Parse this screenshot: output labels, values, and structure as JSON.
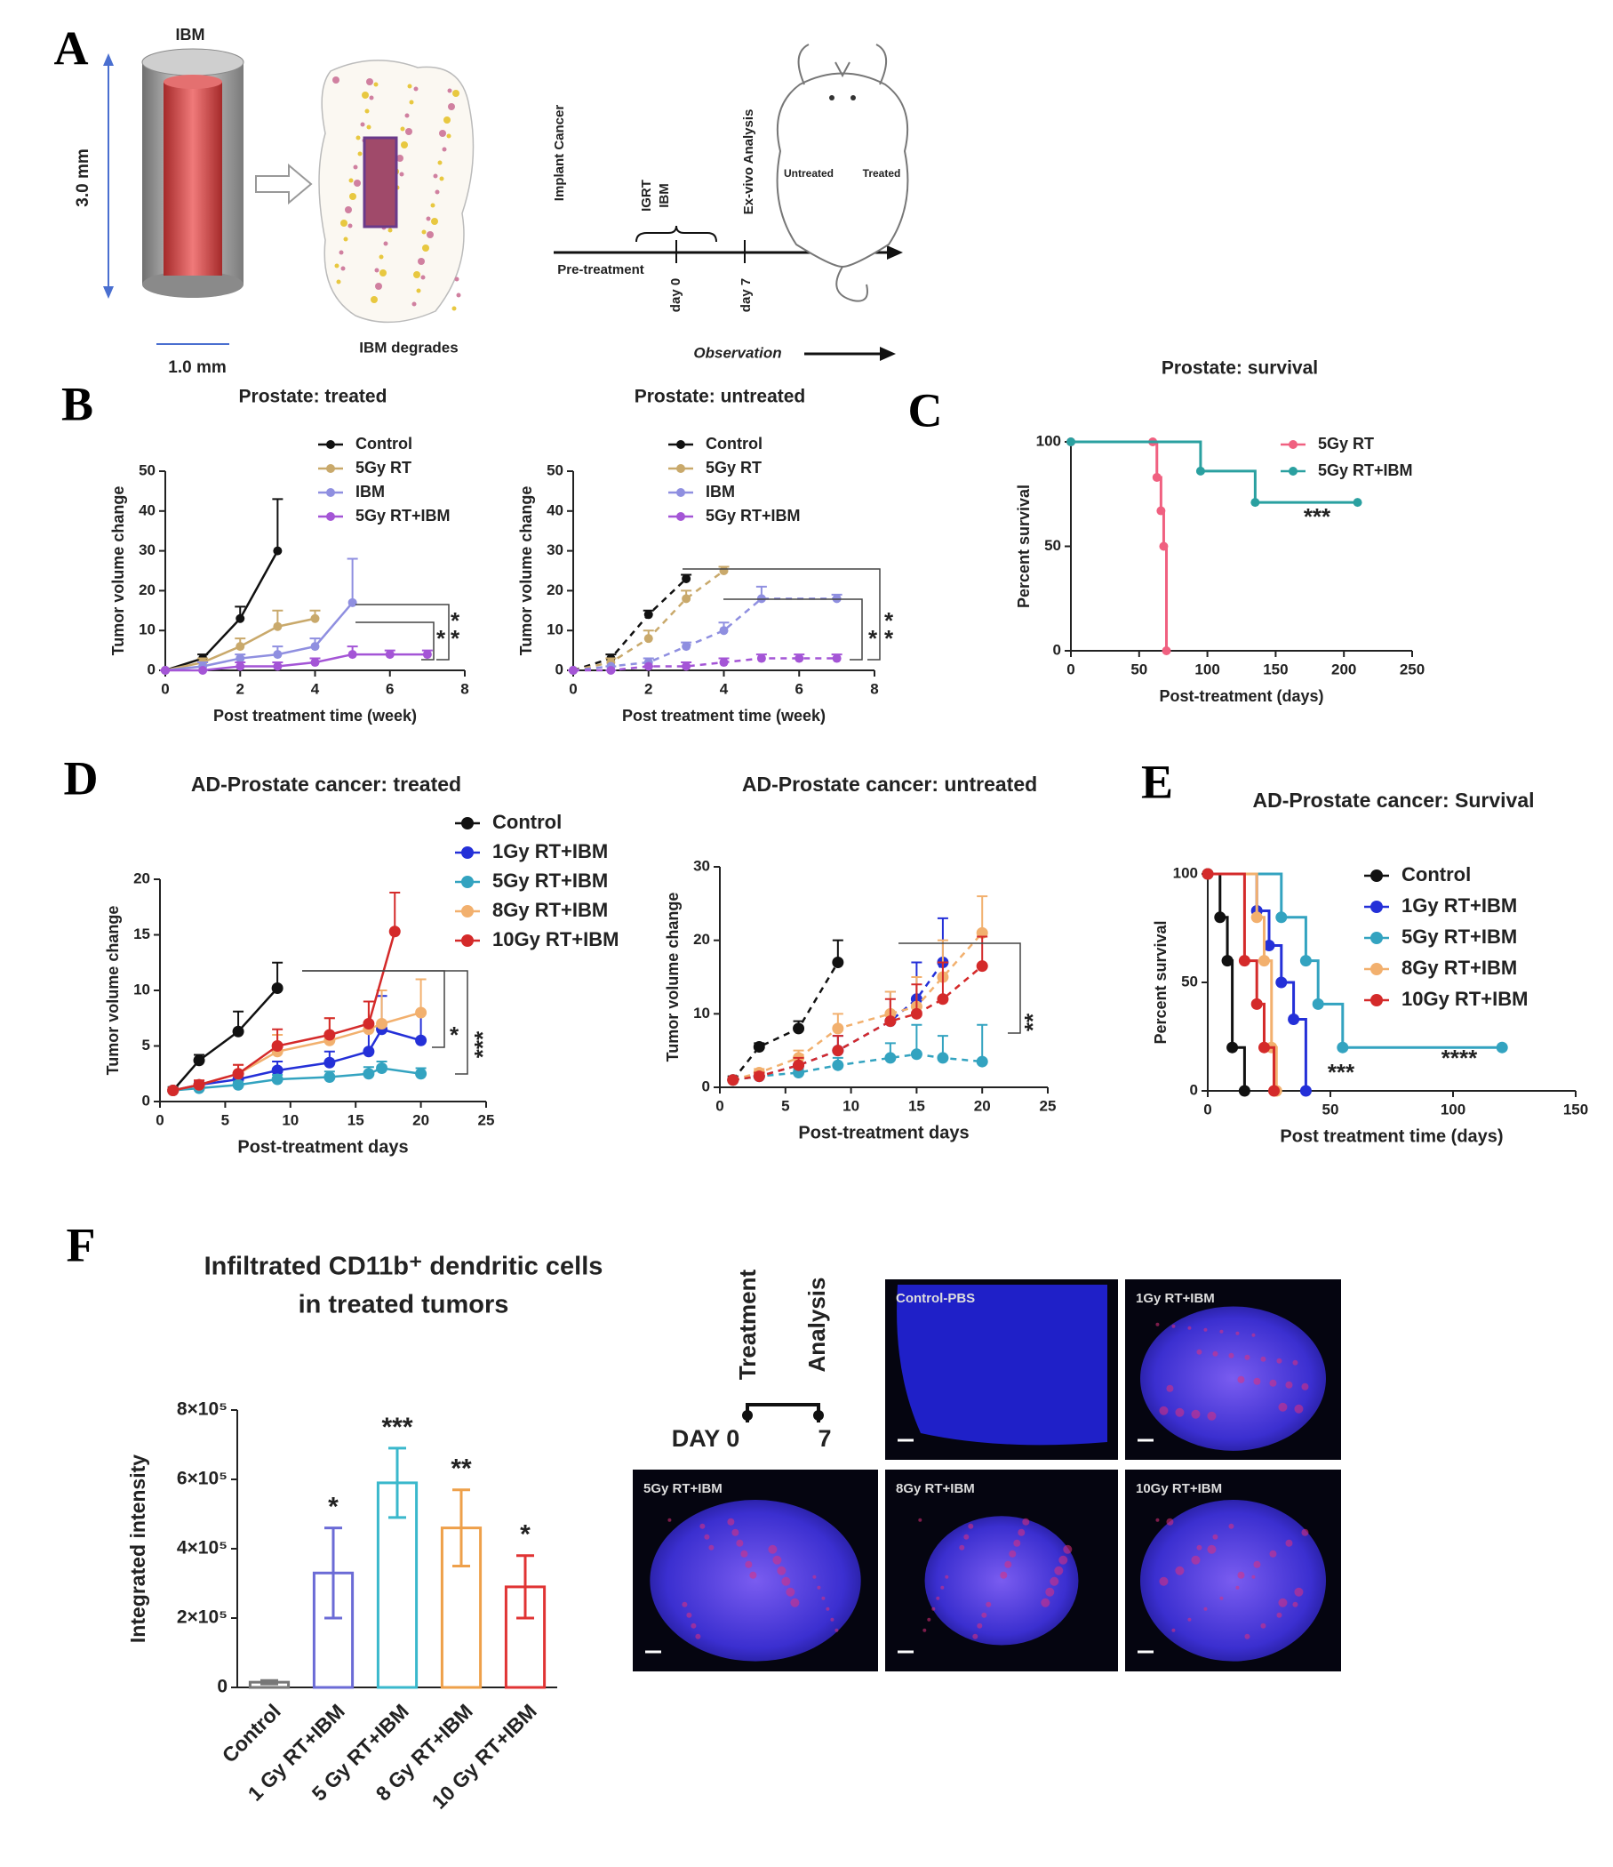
{
  "panel_labels": [
    "A",
    "B",
    "C",
    "D",
    "E",
    "F"
  ],
  "panel_a": {
    "ibm_label": "IBM",
    "height": "3.0 mm",
    "width": "1.0 mm",
    "degrades": "IBM degrades",
    "implant": "Implant Cancer",
    "igrt": "IGRT",
    "ibm": "IBM",
    "analysis": "Ex-vivo Analysis",
    "pretreatment": "Pre-treatment",
    "day0": "day 0",
    "day7": "day 7",
    "observation": "Observation",
    "untreated": "Untreated",
    "treated": "Treated"
  },
  "panel_f": {
    "timeline": {
      "treatment": "Treatment",
      "analysis": "Analysis",
      "day0": "DAY 0",
      "day7": "7"
    },
    "tiles": [
      "Control-PBS",
      "1Gy RT+IBM",
      "5Gy RT+IBM",
      "8Gy RT+IBM",
      "10Gy RT+IBM"
    ]
  },
  "chart_data": [
    {
      "type": "line",
      "title": "Prostate: treated",
      "xlabel": "Post treatment time (week)",
      "ylabel": "Tumor volume change",
      "xlim": [
        0,
        8
      ],
      "xticks": [
        0,
        2,
        4,
        6,
        8
      ],
      "ylim": [
        0,
        50
      ],
      "yticks": [
        0,
        10,
        20,
        30,
        40,
        50
      ],
      "linestyle": "solid",
      "annotations": [
        "*",
        "*",
        "*"
      ],
      "series": [
        {
          "name": "Control",
          "color": "#111111",
          "x": [
            0,
            1,
            2,
            3
          ],
          "values": [
            0,
            3,
            13,
            30
          ],
          "errors": [
            0,
            1,
            3,
            13
          ]
        },
        {
          "name": "5Gy RT",
          "color": "#c9a96b",
          "x": [
            0,
            1,
            2,
            3,
            4
          ],
          "values": [
            0,
            2,
            6,
            11,
            13
          ],
          "errors": [
            0,
            1,
            2,
            4,
            2
          ]
        },
        {
          "name": "IBM",
          "color": "#8f8fe0",
          "x": [
            0,
            1,
            2,
            3,
            4,
            5
          ],
          "values": [
            0,
            1,
            3,
            4,
            6,
            17
          ],
          "errors": [
            0,
            1,
            1,
            2,
            2,
            11
          ]
        },
        {
          "name": "5Gy RT+IBM",
          "color": "#a455d6",
          "x": [
            0,
            1,
            2,
            3,
            4,
            5,
            6,
            7
          ],
          "values": [
            0,
            0,
            1,
            1,
            2,
            4,
            4,
            4
          ],
          "errors": [
            0,
            0,
            1,
            1,
            1,
            2,
            1,
            1
          ]
        }
      ]
    },
    {
      "type": "line",
      "title": "Prostate: untreated",
      "xlabel": "Post treatment time (week)",
      "ylabel": "Tumor volume change",
      "xlim": [
        0,
        8
      ],
      "xticks": [
        0,
        2,
        4,
        6,
        8
      ],
      "ylim": [
        0,
        50
      ],
      "yticks": [
        0,
        10,
        20,
        30,
        40,
        50
      ],
      "linestyle": "dashed",
      "annotations": [
        "*",
        "*",
        "*"
      ],
      "series": [
        {
          "name": "Control",
          "color": "#111111",
          "x": [
            0,
            1,
            2,
            3
          ],
          "values": [
            0,
            3,
            14,
            23
          ],
          "errors": [
            0,
            1,
            1,
            1
          ]
        },
        {
          "name": "5Gy RT",
          "color": "#c9a96b",
          "x": [
            0,
            1,
            2,
            3,
            4
          ],
          "values": [
            0,
            2,
            8,
            18,
            25
          ],
          "errors": [
            0,
            1,
            2,
            2,
            1
          ]
        },
        {
          "name": "IBM",
          "color": "#8f8fe0",
          "x": [
            0,
            1,
            2,
            3,
            4,
            5,
            7
          ],
          "values": [
            0,
            1,
            2,
            6,
            10,
            18,
            18
          ],
          "errors": [
            0,
            0,
            1,
            1,
            2,
            3,
            1
          ]
        },
        {
          "name": "5Gy RT+IBM",
          "color": "#a455d6",
          "x": [
            0,
            1,
            2,
            3,
            4,
            5,
            6,
            7
          ],
          "values": [
            0,
            0,
            1,
            1,
            2,
            3,
            3,
            3
          ],
          "errors": [
            0,
            0,
            0,
            1,
            1,
            1,
            1,
            1
          ]
        }
      ]
    },
    {
      "type": "line",
      "drawstyle": "steps-post",
      "title": "Prostate: survival",
      "xlabel": "Post-treatment (days)",
      "ylabel": "Percent survival",
      "xlim": [
        0,
        250
      ],
      "xticks": [
        0,
        50,
        100,
        150,
        200,
        250
      ],
      "ylim": [
        0,
        100
      ],
      "yticks": [
        0,
        50,
        100
      ],
      "annotations": [
        "***"
      ],
      "series": [
        {
          "name": "5Gy RT",
          "color": "#f06080",
          "x": [
            0,
            60,
            63,
            66,
            68,
            70
          ],
          "values": [
            100,
            100,
            83,
            67,
            50,
            0
          ]
        },
        {
          "name": "5Gy RT+IBM",
          "color": "#2aa0a0",
          "x": [
            0,
            95,
            135,
            210
          ],
          "values": [
            100,
            86,
            71,
            71
          ]
        }
      ]
    },
    {
      "type": "line",
      "title": "AD-Prostate cancer: treated",
      "xlabel": "Post-treatment days",
      "ylabel": "Tumor volume change",
      "xlim": [
        0,
        25
      ],
      "xticks": [
        0,
        5,
        10,
        15,
        20,
        25
      ],
      "ylim": [
        0,
        20
      ],
      "yticks": [
        0,
        5,
        10,
        15,
        20
      ],
      "linestyle": "solid",
      "annotations": [
        "*",
        "***"
      ],
      "series": [
        {
          "name": "Control",
          "color": "#111111",
          "x": [
            1,
            3,
            6,
            9
          ],
          "values": [
            1,
            3.7,
            6.3,
            10.2
          ],
          "errors": [
            0.3,
            0.5,
            1.8,
            2.3
          ]
        },
        {
          "name": "1Gy RT+IBM",
          "color": "#2430d8",
          "x": [
            1,
            3,
            6,
            9,
            13,
            16,
            17,
            20
          ],
          "values": [
            1,
            1.5,
            2,
            2.8,
            3.5,
            4.5,
            6.5,
            5.5
          ],
          "errors": [
            0.2,
            0.3,
            0.5,
            0.8,
            1,
            2,
            3,
            2.5
          ]
        },
        {
          "name": "5Gy RT+IBM",
          "color": "#33a3c0",
          "x": [
            1,
            3,
            6,
            9,
            13,
            16,
            17,
            20
          ],
          "values": [
            1,
            1.2,
            1.5,
            2,
            2.2,
            2.5,
            3,
            2.5
          ],
          "errors": [
            0.1,
            0.2,
            0.3,
            0.4,
            0.5,
            0.6,
            0.6,
            0.5
          ]
        },
        {
          "name": "8Gy RT+IBM",
          "color": "#f2b06e",
          "x": [
            1,
            3,
            6,
            9,
            13,
            16,
            17,
            20
          ],
          "values": [
            1,
            1.5,
            2.5,
            4.5,
            5.5,
            6.5,
            7,
            8
          ],
          "errors": [
            0.2,
            0.4,
            0.8,
            1.5,
            2,
            2.5,
            3,
            3
          ]
        },
        {
          "name": "10Gy RT+IBM",
          "color": "#d42a2a",
          "x": [
            1,
            3,
            6,
            9,
            13,
            16,
            18
          ],
          "values": [
            1,
            1.5,
            2.5,
            5,
            6,
            7,
            15.3
          ],
          "errors": [
            0.2,
            0.4,
            0.8,
            1.5,
            1.5,
            2,
            3.5
          ]
        }
      ]
    },
    {
      "type": "line",
      "title": "AD-Prostate cancer: untreated",
      "xlabel": "Post-treatment days",
      "ylabel": "Tumor volume change",
      "xlim": [
        0,
        25
      ],
      "xticks": [
        0,
        5,
        10,
        15,
        20,
        25
      ],
      "ylim": [
        0,
        30
      ],
      "yticks": [
        0,
        10,
        20,
        30
      ],
      "linestyle": "dashed",
      "annotations": [
        "**"
      ],
      "series": [
        {
          "color": "#111111",
          "x": [
            1,
            3,
            6,
            9
          ],
          "values": [
            1,
            5.5,
            8,
            17
          ],
          "errors": [
            0.5,
            0.5,
            1,
            3
          ]
        },
        {
          "color": "#2430d8",
          "x": [
            1,
            3,
            6,
            9,
            13,
            15,
            17
          ],
          "values": [
            1,
            1.5,
            3,
            5,
            9,
            12,
            17
          ],
          "errors": [
            0.3,
            0.5,
            1,
            2,
            4,
            5,
            6
          ]
        },
        {
          "color": "#33a3c0",
          "x": [
            1,
            3,
            6,
            9,
            13,
            15,
            17,
            20
          ],
          "values": [
            1,
            1.5,
            2,
            3,
            4,
            4.5,
            4,
            3.5
          ],
          "errors": [
            0.3,
            0.3,
            0.5,
            1,
            2,
            4,
            3,
            5
          ]
        },
        {
          "color": "#f2b06e",
          "x": [
            1,
            3,
            6,
            9,
            13,
            15,
            17,
            20
          ],
          "values": [
            1,
            2,
            4,
            8,
            10,
            11,
            15,
            21
          ],
          "errors": [
            0.3,
            0.5,
            1,
            2,
            3,
            4,
            5,
            5
          ]
        },
        {
          "color": "#d42a2a",
          "x": [
            1,
            3,
            6,
            9,
            13,
            15,
            17,
            20
          ],
          "values": [
            1,
            1.5,
            3,
            5,
            9,
            10,
            12,
            16.5
          ],
          "errors": [
            0.3,
            0.5,
            1,
            2,
            3,
            4,
            5,
            4
          ]
        }
      ]
    },
    {
      "type": "line",
      "drawstyle": "steps-post",
      "title": "AD-Prostate cancer: Survival",
      "xlabel": "Post treatment time (days)",
      "ylabel": "Percent survival",
      "xlim": [
        0,
        150
      ],
      "xticks": [
        0,
        50,
        100,
        150
      ],
      "ylim": [
        0,
        100
      ],
      "yticks": [
        0,
        50,
        100
      ],
      "annotations": [
        "***",
        "****"
      ],
      "series": [
        {
          "name": "Control",
          "color": "#111111",
          "x": [
            0,
            5,
            8,
            10,
            15
          ],
          "values": [
            100,
            80,
            60,
            20,
            0
          ]
        },
        {
          "name": "1Gy RT+IBM",
          "color": "#2430d8",
          "x": [
            0,
            20,
            25,
            30,
            35,
            40
          ],
          "values": [
            100,
            83,
            67,
            50,
            33,
            0
          ]
        },
        {
          "name": "5Gy RT+IBM",
          "color": "#33a3c0",
          "x": [
            0,
            30,
            40,
            45,
            55,
            120
          ],
          "values": [
            100,
            80,
            60,
            40,
            20,
            20
          ]
        },
        {
          "name": "8Gy RT+IBM",
          "color": "#f2b06e",
          "x": [
            0,
            20,
            23,
            26,
            28
          ],
          "values": [
            100,
            80,
            60,
            20,
            0
          ]
        },
        {
          "name": "10Gy RT+IBM",
          "color": "#d42a2a",
          "x": [
            0,
            15,
            20,
            23,
            27
          ],
          "values": [
            100,
            60,
            40,
            20,
            0
          ]
        }
      ]
    },
    {
      "type": "bar",
      "title": [
        "Infiltrated CD11b⁺ dendritic cells",
        "in treated tumors"
      ],
      "ylabel": "Integrated intensity",
      "categories": [
        "Control",
        "1 Gy RT+IBM",
        "5 Gy RT+IBM",
        "8 Gy RT+IBM",
        "10 Gy RT+IBM"
      ],
      "values": [
        15000,
        330000,
        590000,
        460000,
        290000
      ],
      "errors": [
        5000,
        130000,
        100000,
        110000,
        90000
      ],
      "colors": [
        "#777777",
        "#6b6bd6",
        "#3ab8cc",
        "#eea04a",
        "#e03434"
      ],
      "annotations": [
        null,
        "*",
        "***",
        "**",
        "*"
      ],
      "ylim": [
        0,
        800000
      ],
      "yticks": [
        0,
        {
          "value": 200000,
          "label": "2×10⁵"
        },
        {
          "value": 400000,
          "label": "4×10⁵"
        },
        {
          "value": 600000,
          "label": "6×10⁵"
        },
        {
          "value": 800000,
          "label": "8×10⁵"
        }
      ]
    }
  ]
}
